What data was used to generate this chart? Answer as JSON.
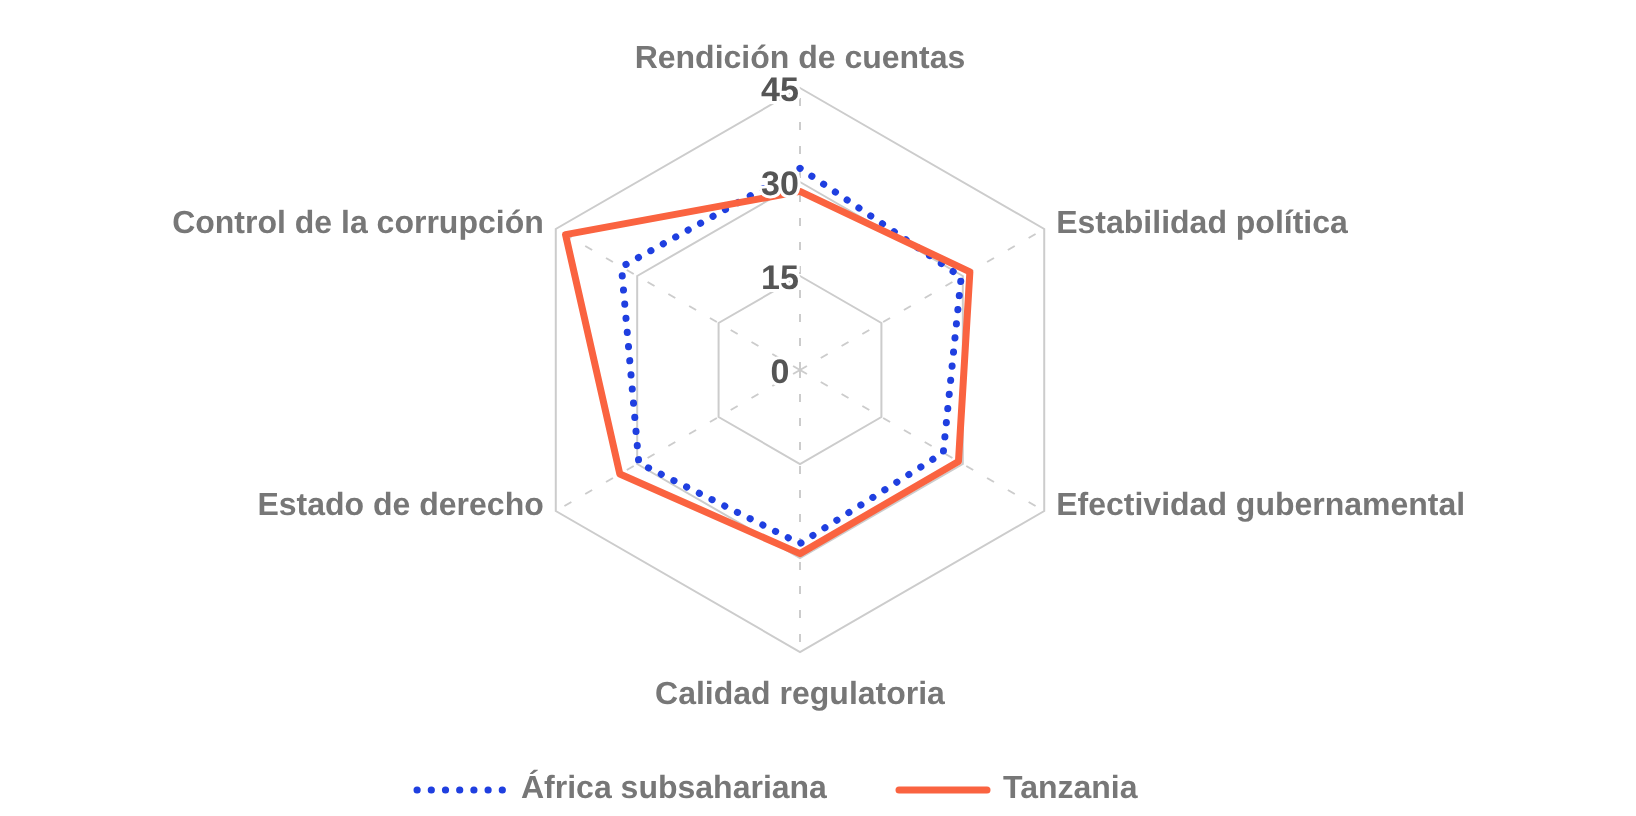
{
  "chart_data": {
    "type": "radar",
    "categories": [
      "Rendición de cuentas",
      "Estabilidad política",
      "Efectividad gubernamental",
      "Calidad regulatoria",
      "Estado de derecho",
      "Control de la corrupción"
    ],
    "series": [
      {
        "name": "África subsahariana",
        "color": "#1f3fe0",
        "line_style": "dotted",
        "values": [
          32.2,
          29.7,
          26.4,
          27.7,
          29.7,
          32.9
        ]
      },
      {
        "name": "Tanzania",
        "color": "#fa6340",
        "line_style": "solid",
        "values": [
          28.5,
          31.3,
          29.2,
          29.3,
          33.2,
          43.2
        ]
      }
    ],
    "ylim": [
      0,
      45
    ],
    "yticks": [
      0,
      15,
      30,
      45
    ],
    "grid": true,
    "legend": "bottom"
  }
}
